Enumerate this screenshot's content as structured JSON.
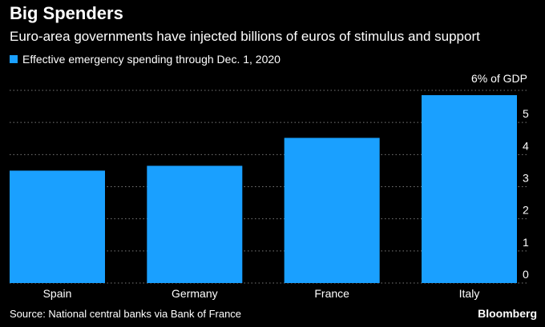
{
  "chart_data": {
    "type": "bar",
    "title": "Big Spenders",
    "subtitle": "Euro-area governments have injected billions of euros of stimulus and support",
    "legend": "Effective emergency spending through Dec. 1, 2020",
    "categories": [
      "Spain",
      "Germany",
      "France",
      "Italy"
    ],
    "values": [
      3.5,
      3.65,
      4.52,
      5.85
    ],
    "y_unit_label": "6% of GDP",
    "yticks": [
      "0",
      "1",
      "2",
      "3",
      "4",
      "5"
    ],
    "ylim": [
      0,
      6
    ],
    "grid": true,
    "source": "Source: National central banks via Bank of France",
    "brand": "Bloomberg",
    "bar_color": "#1aa0ff"
  }
}
